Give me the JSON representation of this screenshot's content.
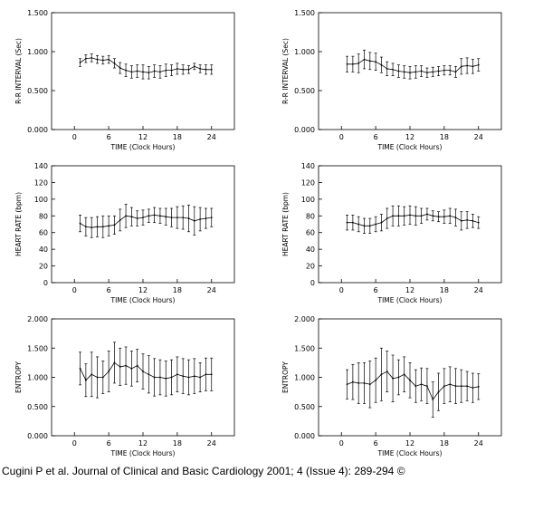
{
  "caption": "Cugini P et al. Journal of Clinical and Basic Cardiology 2001; 4 (Issue 4): 289-294 ©",
  "chart_data": [
    {
      "type": "line",
      "xlabel": "TIME (Clock Hours)",
      "ylabel": "R-R INTERVAL (Sec)",
      "xlim": [
        -4,
        28
      ],
      "ylim": [
        0,
        1.5
      ],
      "xticks": [
        "0",
        "6",
        "12",
        "18",
        "24"
      ],
      "yticks": [
        "0.000",
        "0.500",
        "1.000",
        "1.500"
      ],
      "series": [
        {
          "x": [
            1,
            2,
            3,
            4,
            5,
            6,
            7,
            8,
            9,
            10,
            11,
            12,
            13,
            14,
            15,
            16,
            17,
            18,
            19,
            20,
            21,
            22,
            23,
            24
          ],
          "y": [
            0.86,
            0.91,
            0.92,
            0.9,
            0.89,
            0.9,
            0.85,
            0.79,
            0.76,
            0.74,
            0.75,
            0.74,
            0.73,
            0.75,
            0.74,
            0.76,
            0.76,
            0.78,
            0.77,
            0.77,
            0.81,
            0.78,
            0.77,
            0.77
          ],
          "err": [
            0.05,
            0.05,
            0.05,
            0.05,
            0.05,
            0.05,
            0.06,
            0.07,
            0.08,
            0.08,
            0.08,
            0.09,
            0.08,
            0.08,
            0.08,
            0.08,
            0.07,
            0.07,
            0.06,
            0.05,
            0.04,
            0.05,
            0.06,
            0.06
          ]
        }
      ]
    },
    {
      "type": "line",
      "xlabel": "TIME (Clock Hours)",
      "ylabel": "R-R INTERVAL (Sec)",
      "xlim": [
        -4,
        28
      ],
      "ylim": [
        0,
        1.5
      ],
      "xticks": [
        "0",
        "6",
        "12",
        "18",
        "24"
      ],
      "yticks": [
        "0.000",
        "0.500",
        "1.000",
        "1.500"
      ],
      "series": [
        {
          "x": [
            1,
            2,
            3,
            4,
            5,
            6,
            7,
            8,
            9,
            10,
            11,
            12,
            13,
            14,
            15,
            16,
            17,
            18,
            19,
            20,
            21,
            22,
            23,
            24
          ],
          "y": [
            0.84,
            0.84,
            0.85,
            0.9,
            0.88,
            0.87,
            0.83,
            0.78,
            0.77,
            0.75,
            0.74,
            0.73,
            0.74,
            0.75,
            0.73,
            0.74,
            0.75,
            0.76,
            0.76,
            0.74,
            0.81,
            0.82,
            0.81,
            0.83
          ],
          "err": [
            0.1,
            0.1,
            0.12,
            0.12,
            0.11,
            0.11,
            0.1,
            0.09,
            0.08,
            0.08,
            0.08,
            0.08,
            0.08,
            0.07,
            0.06,
            0.06,
            0.06,
            0.06,
            0.06,
            0.07,
            0.1,
            0.1,
            0.09,
            0.08
          ]
        }
      ]
    },
    {
      "type": "line",
      "xlabel": "TIME (Clock Hours)",
      "ylabel": "HEART RATE (bpm)",
      "xlim": [
        -4,
        28
      ],
      "ylim": [
        0,
        140
      ],
      "xticks": [
        "0",
        "6",
        "12",
        "18",
        "24"
      ],
      "yticks": [
        "0",
        "20",
        "40",
        "60",
        "80",
        "100",
        "120",
        "140"
      ],
      "series": [
        {
          "x": [
            1,
            2,
            3,
            4,
            5,
            6,
            7,
            8,
            9,
            10,
            11,
            12,
            13,
            14,
            15,
            16,
            17,
            18,
            19,
            20,
            21,
            22,
            23,
            24
          ],
          "y": [
            71,
            67,
            66,
            67,
            67,
            68,
            69,
            75,
            80,
            79,
            77,
            78,
            80,
            81,
            80,
            79,
            78,
            78,
            78,
            77,
            74,
            76,
            77,
            78
          ],
          "err": [
            10,
            11,
            12,
            12,
            13,
            12,
            11,
            13,
            14,
            11,
            9,
            9,
            8,
            9,
            9,
            10,
            11,
            13,
            14,
            16,
            17,
            14,
            12,
            11
          ]
        }
      ]
    },
    {
      "type": "line",
      "xlabel": "TIME (Clock Hours)",
      "ylabel": "HEART RATE (bpm)",
      "xlim": [
        -4,
        28
      ],
      "ylim": [
        0,
        140
      ],
      "xticks": [
        "0",
        "6",
        "12",
        "18",
        "24"
      ],
      "yticks": [
        "0",
        "20",
        "40",
        "60",
        "80",
        "100",
        "120",
        "140"
      ],
      "series": [
        {
          "x": [
            1,
            2,
            3,
            4,
            5,
            6,
            7,
            8,
            9,
            10,
            11,
            12,
            13,
            14,
            15,
            16,
            17,
            18,
            19,
            20,
            21,
            22,
            23,
            24
          ],
          "y": [
            72,
            72,
            70,
            68,
            68,
            70,
            72,
            77,
            80,
            80,
            80,
            81,
            80,
            80,
            82,
            80,
            79,
            79,
            80,
            78,
            74,
            75,
            74,
            72
          ],
          "err": [
            9,
            9,
            9,
            9,
            9,
            9,
            10,
            12,
            12,
            12,
            11,
            11,
            11,
            9,
            7,
            6,
            6,
            8,
            9,
            10,
            11,
            10,
            8,
            7
          ]
        }
      ]
    },
    {
      "type": "line",
      "xlabel": "TIME (Clock Hours)",
      "ylabel": "ENTROPY",
      "xlim": [
        -4,
        28
      ],
      "ylim": [
        0,
        2
      ],
      "xticks": [
        "0",
        "6",
        "12",
        "18",
        "24"
      ],
      "yticks": [
        "0.000",
        "0.500",
        "1.000",
        "1.500",
        "2.000"
      ],
      "series": [
        {
          "x": [
            1,
            2,
            3,
            4,
            5,
            6,
            7,
            8,
            9,
            10,
            11,
            12,
            13,
            14,
            15,
            16,
            17,
            18,
            19,
            20,
            21,
            22,
            23,
            24
          ],
          "y": [
            1.15,
            0.95,
            1.05,
            1.0,
            1.0,
            1.1,
            1.25,
            1.18,
            1.2,
            1.15,
            1.2,
            1.1,
            1.05,
            1.0,
            1.0,
            0.98,
            1.0,
            1.05,
            1.02,
            1.0,
            1.02,
            1.0,
            1.05,
            1.05
          ],
          "err": [
            0.28,
            0.28,
            0.38,
            0.35,
            0.28,
            0.35,
            0.35,
            0.32,
            0.32,
            0.3,
            0.28,
            0.3,
            0.32,
            0.32,
            0.3,
            0.3,
            0.3,
            0.3,
            0.3,
            0.3,
            0.3,
            0.25,
            0.28,
            0.28
          ]
        }
      ]
    },
    {
      "type": "line",
      "xlabel": "TIME (Clock Hours)",
      "ylabel": "ENTROPY",
      "xlim": [
        -4,
        28
      ],
      "ylim": [
        0,
        2
      ],
      "xticks": [
        "0",
        "6",
        "12",
        "18",
        "24"
      ],
      "yticks": [
        "0.000",
        "0.500",
        "1.000",
        "1.500",
        "2.000"
      ],
      "series": [
        {
          "x": [
            1,
            2,
            3,
            4,
            5,
            6,
            7,
            8,
            9,
            10,
            11,
            12,
            13,
            14,
            15,
            16,
            17,
            18,
            19,
            20,
            21,
            22,
            23,
            24
          ],
          "y": [
            0.88,
            0.92,
            0.9,
            0.9,
            0.88,
            0.95,
            1.05,
            1.1,
            0.98,
            1.0,
            1.05,
            0.95,
            0.85,
            0.88,
            0.85,
            0.62,
            0.75,
            0.85,
            0.88,
            0.85,
            0.85,
            0.85,
            0.82,
            0.84
          ],
          "err": [
            0.25,
            0.3,
            0.35,
            0.35,
            0.4,
            0.38,
            0.45,
            0.35,
            0.4,
            0.3,
            0.3,
            0.3,
            0.28,
            0.28,
            0.3,
            0.3,
            0.32,
            0.3,
            0.3,
            0.3,
            0.28,
            0.25,
            0.25,
            0.22
          ]
        }
      ]
    }
  ]
}
